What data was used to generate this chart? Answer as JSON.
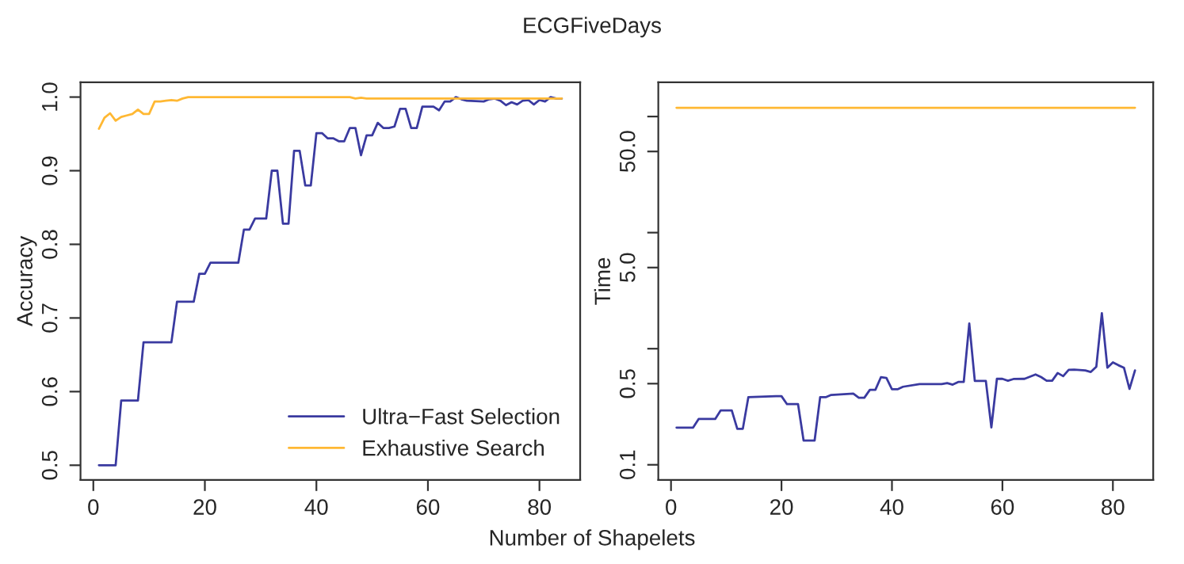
{
  "chart_data": [
    {
      "type": "line",
      "title": "ECGFiveDays",
      "xlabel": "Number of Shapelets",
      "ylabel": "Accuracy",
      "legend": "bottom right",
      "grid": false,
      "xlim": [
        -2.3,
        87.3
      ],
      "xticks": [
        0,
        20,
        40,
        60,
        80
      ],
      "ylim": [
        0.48,
        1.02
      ],
      "yticks": [
        {
          "value": 0.5,
          "label": "0.5"
        },
        {
          "value": 0.6,
          "label": "0.6"
        },
        {
          "value": 0.7,
          "label": "0.7"
        },
        {
          "value": 0.8,
          "label": "0.8"
        },
        {
          "value": 0.9,
          "label": "0.9"
        },
        {
          "value": 1.0,
          "label": "1.0"
        }
      ],
      "series": [
        {
          "name": "Ultra−Fast Selection",
          "color": "#3a3aa0",
          "x": [
            1,
            4,
            5,
            8,
            9,
            14,
            15,
            18,
            19,
            20,
            21,
            26,
            27,
            28,
            29,
            31,
            32,
            33,
            34,
            35,
            36,
            37,
            38,
            39,
            40,
            41,
            42,
            43,
            44,
            45,
            46,
            47,
            48,
            49,
            50,
            51,
            52,
            53,
            54,
            55,
            56,
            57,
            58,
            59,
            60,
            61,
            62,
            63,
            64,
            65,
            66,
            67,
            70,
            71,
            72,
            73,
            74,
            75,
            76,
            77,
            78,
            79,
            80,
            81,
            82,
            83,
            84
          ],
          "values": [
            0.5,
            0.5,
            0.588,
            0.588,
            0.667,
            0.667,
            0.722,
            0.722,
            0.76,
            0.76,
            0.775,
            0.775,
            0.82,
            0.82,
            0.835,
            0.835,
            0.9,
            0.9,
            0.828,
            0.828,
            0.927,
            0.927,
            0.88,
            0.88,
            0.951,
            0.951,
            0.944,
            0.944,
            0.94,
            0.94,
            0.958,
            0.958,
            0.921,
            0.948,
            0.948,
            0.965,
            0.958,
            0.958,
            0.96,
            0.984,
            0.984,
            0.958,
            0.958,
            0.987,
            0.987,
            0.987,
            0.982,
            0.994,
            0.994,
            1.0,
            0.997,
            0.995,
            0.994,
            0.997,
            0.998,
            0.995,
            0.989,
            0.993,
            0.99,
            0.995,
            0.996,
            0.99,
            0.996,
            0.994,
            1.0,
            0.998,
            0.998
          ]
        },
        {
          "name": "Exhaustive Search",
          "color": "#ffb833",
          "x": [
            1,
            2,
            3,
            4,
            5,
            6,
            7,
            8,
            9,
            10,
            11,
            12,
            13,
            14,
            15,
            16,
            17,
            46,
            47,
            48,
            49,
            60,
            70,
            84
          ],
          "values": [
            0.957,
            0.972,
            0.978,
            0.968,
            0.973,
            0.975,
            0.977,
            0.983,
            0.977,
            0.977,
            0.994,
            0.994,
            0.995,
            0.996,
            0.995,
            0.998,
            1.0,
            1.0,
            0.998,
            0.999,
            0.998,
            0.998,
            0.998,
            0.998
          ]
        }
      ]
    },
    {
      "type": "line",
      "ylabel": "Time",
      "log": "y",
      "legend": false,
      "grid": false,
      "xlim": [
        -2.3,
        87.3
      ],
      "xticks": [
        0,
        20,
        40,
        60,
        80
      ],
      "ylim": [
        0.074,
        197
      ],
      "yticks": [
        {
          "value": 0.1,
          "label": "0.1"
        },
        {
          "value": 0.5,
          "label": "0.5"
        },
        {
          "value": 1,
          "label": null
        },
        {
          "value": 5,
          "label": "5.0"
        },
        {
          "value": 10,
          "label": null
        },
        {
          "value": 50,
          "label": "50.0"
        },
        {
          "value": 100,
          "label": null
        }
      ],
      "series": [
        {
          "color": "#3a3aa0",
          "x": [
            1,
            4,
            5,
            8,
            9,
            11,
            12,
            13,
            14,
            19,
            20,
            21,
            23,
            24,
            26,
            27,
            28,
            29,
            33,
            34,
            35,
            36,
            37,
            38,
            39,
            40,
            41,
            42,
            45,
            49,
            50,
            51,
            52,
            53,
            54,
            55,
            57,
            58,
            59,
            60,
            61,
            62,
            64,
            66,
            67,
            68,
            69,
            70,
            71,
            72,
            73,
            74,
            75,
            76,
            77,
            78,
            79,
            80,
            81,
            82,
            83,
            84
          ],
          "values": [
            0.209,
            0.209,
            0.248,
            0.248,
            0.294,
            0.294,
            0.204,
            0.204,
            0.382,
            0.39,
            0.39,
            0.333,
            0.333,
            0.162,
            0.162,
            0.382,
            0.382,
            0.4,
            0.41,
            0.378,
            0.378,
            0.442,
            0.442,
            0.568,
            0.56,
            0.447,
            0.447,
            0.47,
            0.496,
            0.496,
            0.506,
            0.49,
            0.517,
            0.517,
            1.65,
            0.528,
            0.528,
            0.21,
            0.55,
            0.55,
            0.53,
            0.548,
            0.55,
            0.6,
            0.57,
            0.53,
            0.53,
            0.618,
            0.58,
            0.658,
            0.66,
            0.655,
            0.65,
            0.63,
            0.7,
            2.02,
            0.686,
            0.762,
            0.72,
            0.686,
            0.45,
            0.65
          ]
        },
        {
          "color": "#ffb833",
          "x": [
            1,
            84
          ],
          "values": [
            119,
            119
          ]
        }
      ]
    }
  ]
}
